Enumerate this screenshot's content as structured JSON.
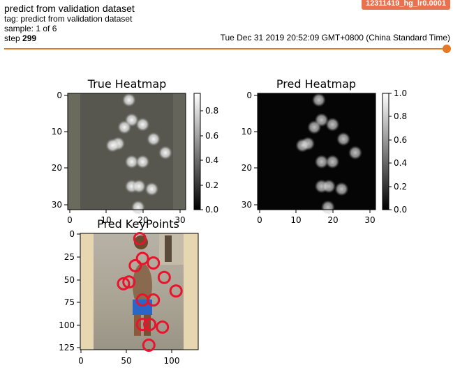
{
  "header": {
    "title": "predict from validation dataset",
    "tag_line": "tag: predict from validation dataset",
    "sample_line": "sample: 1 of 6",
    "step_label": "step",
    "step_value": "299",
    "run_badge": "12311419_hg_lr0.0001",
    "timestamp": "Tue Dec 31 2019 20:52:09 GMT+0800 (China Standard Time)"
  },
  "slider": {
    "value_fraction": 1.0,
    "color": "#e87722"
  },
  "figure": {
    "true_heatmap": {
      "title": "True Heatmap",
      "xticks": [
        "0",
        "10",
        "20",
        "30"
      ],
      "yticks": [
        "0",
        "10",
        "20",
        "30"
      ],
      "colorbar_ticks": [
        "0.0",
        "0.2",
        "0.4",
        "0.6",
        "0.8"
      ]
    },
    "pred_heatmap": {
      "title": "Pred Heatmap",
      "xticks": [
        "0",
        "10",
        "20",
        "30"
      ],
      "yticks": [
        "0",
        "10",
        "20",
        "30"
      ],
      "colorbar_ticks": [
        "0.0",
        "0.2",
        "0.4",
        "0.6",
        "0.8",
        "1.0"
      ]
    },
    "pred_keypoints": {
      "title": "Pred KeyPoints",
      "xticks": [
        "0",
        "50",
        "100"
      ],
      "yticks": [
        "0",
        "25",
        "50",
        "75",
        "100",
        "125"
      ],
      "keypoints": [
        {
          "x": 65,
          "y": 5
        },
        {
          "x": 68,
          "y": 27
        },
        {
          "x": 80,
          "y": 32
        },
        {
          "x": 60,
          "y": 35
        },
        {
          "x": 92,
          "y": 48
        },
        {
          "x": 53,
          "y": 53
        },
        {
          "x": 47,
          "y": 55
        },
        {
          "x": 105,
          "y": 63
        },
        {
          "x": 68,
          "y": 73
        },
        {
          "x": 80,
          "y": 73
        },
        {
          "x": 68,
          "y": 100
        },
        {
          "x": 76,
          "y": 100
        },
        {
          "x": 90,
          "y": 103
        },
        {
          "x": 75,
          "y": 123
        }
      ],
      "marker_color": "#e8142c"
    }
  }
}
